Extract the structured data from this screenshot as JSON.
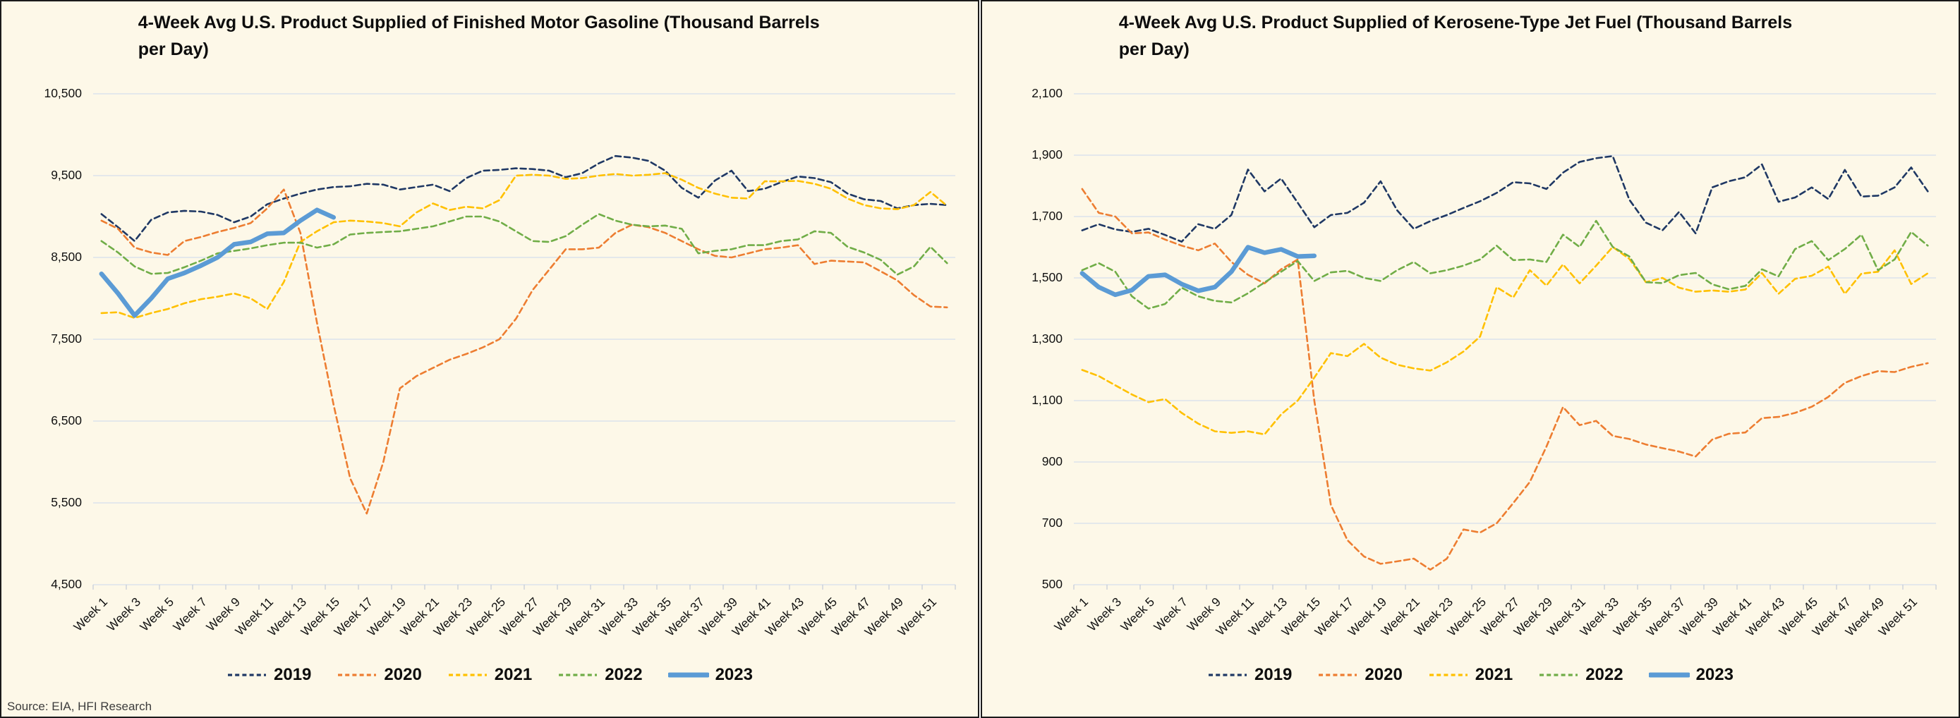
{
  "source_note": "Source: EIA, HFI Research",
  "chart_data": [
    {
      "type": "line",
      "title": "4-Week Avg U.S. Product Supplied of Finished Motor Gasoline  (Thousand Barrels per Day)",
      "xlabel": "",
      "ylabel": "",
      "ylim": [
        4500,
        10500
      ],
      "y_step": 1000,
      "y_tick_labels": [
        "10,500",
        "9,500",
        "8,500",
        "7,500",
        "6,500",
        "5,500",
        "4,500"
      ],
      "x_tick_labels": [
        "Week 1",
        "Week 3",
        "Week 5",
        "Week 7",
        "Week 9",
        "Week 11",
        "Week 13",
        "Week 15",
        "Week 17",
        "Week 19",
        "Week 21",
        "Week 23",
        "Week 25",
        "Week 27",
        "Week 29",
        "Week 31",
        "Week 33",
        "Week 35",
        "Week 37",
        "Week 39",
        "Week 41",
        "Week 43",
        "Week 45",
        "Week 47",
        "Week 49",
        "Week 51"
      ],
      "n_points": 52,
      "grid": true,
      "legend_position": "bottom",
      "series": [
        {
          "name": "2019",
          "color": "#1f3864",
          "dash": "dashed",
          "width": 2.6,
          "values": [
            9030,
            8870,
            8700,
            8960,
            9050,
            9070,
            9060,
            9020,
            8930,
            9000,
            9150,
            9220,
            9280,
            9330,
            9360,
            9370,
            9400,
            9390,
            9330,
            9360,
            9390,
            9310,
            9470,
            9560,
            9570,
            9590,
            9580,
            9560,
            9480,
            9530,
            9650,
            9740,
            9720,
            9680,
            9560,
            9350,
            9230,
            9440,
            9560,
            9310,
            9340,
            9420,
            9490,
            9470,
            9420,
            9280,
            9210,
            9190,
            9100,
            9140,
            9155,
            9140
          ]
        },
        {
          "name": "2020",
          "color": "#ed7d31",
          "dash": "dashed",
          "width": 2.6,
          "values": [
            8950,
            8850,
            8620,
            8560,
            8530,
            8700,
            8750,
            8810,
            8860,
            8920,
            9100,
            9330,
            8800,
            7700,
            6700,
            5800,
            5370,
            6000,
            6900,
            7050,
            7150,
            7250,
            7320,
            7400,
            7500,
            7750,
            8100,
            8350,
            8600,
            8600,
            8620,
            8800,
            8900,
            8870,
            8800,
            8700,
            8600,
            8520,
            8500,
            8550,
            8600,
            8620,
            8650,
            8420,
            8460,
            8450,
            8440,
            8330,
            8220,
            8040,
            7900,
            7890
          ]
        },
        {
          "name": "2021",
          "color": "#ffc000",
          "dash": "dashed",
          "width": 2.6,
          "values": [
            7820,
            7830,
            7760,
            7820,
            7870,
            7940,
            7990,
            8020,
            8060,
            8000,
            7870,
            8200,
            8690,
            8820,
            8930,
            8950,
            8940,
            8920,
            8880,
            9050,
            9160,
            9080,
            9120,
            9100,
            9200,
            9500,
            9510,
            9500,
            9460,
            9470,
            9500,
            9520,
            9500,
            9510,
            9530,
            9450,
            9350,
            9280,
            9230,
            9220,
            9430,
            9430,
            9435,
            9400,
            9340,
            9220,
            9140,
            9100,
            9090,
            9140,
            9300,
            9130
          ]
        },
        {
          "name": "2022",
          "color": "#70ad47",
          "dash": "dashed",
          "width": 2.6,
          "values": [
            8700,
            8560,
            8390,
            8300,
            8310,
            8380,
            8460,
            8550,
            8580,
            8610,
            8650,
            8680,
            8680,
            8620,
            8660,
            8780,
            8800,
            8810,
            8820,
            8850,
            8880,
            8940,
            9000,
            9000,
            8940,
            8820,
            8700,
            8690,
            8760,
            8900,
            9030,
            8950,
            8900,
            8880,
            8890,
            8850,
            8550,
            8580,
            8600,
            8650,
            8650,
            8700,
            8720,
            8820,
            8800,
            8630,
            8560,
            8470,
            8290,
            8390,
            8630,
            8430
          ]
        },
        {
          "name": "2023",
          "color": "#5b9bd5",
          "dash": "solid",
          "width": 6.5,
          "values": [
            8300,
            8060,
            7790,
            8000,
            8240,
            8310,
            8400,
            8500,
            8660,
            8690,
            8790,
            8800,
            8950,
            9080,
            8990
          ]
        }
      ]
    },
    {
      "type": "line",
      "title": "4-Week Avg U.S. Product Supplied of Kerosene-Type Jet Fuel  (Thousand Barrels per Day)",
      "xlabel": "",
      "ylabel": "",
      "ylim": [
        500,
        2100
      ],
      "y_step": 200,
      "y_tick_labels": [
        "2,100",
        "1,900",
        "1,700",
        "1,500",
        "1,300",
        "1,100",
        "900",
        "700",
        "500"
      ],
      "x_tick_labels": [
        "Week 1",
        "Week 3",
        "Week 5",
        "Week 7",
        "Week 9",
        "Week 11",
        "Week 13",
        "Week 15",
        "Week 17",
        "Week 19",
        "Week 21",
        "Week 23",
        "Week 25",
        "Week 27",
        "Week 29",
        "Week 31",
        "Week 33",
        "Week 35",
        "Week 37",
        "Week 39",
        "Week 41",
        "Week 43",
        "Week 45",
        "Week 47",
        "Week 49",
        "Week 51"
      ],
      "n_points": 52,
      "grid": true,
      "legend_position": "bottom",
      "series": [
        {
          "name": "2019",
          "color": "#1f3864",
          "dash": "dashed",
          "width": 2.6,
          "values": [
            1655,
            1675,
            1658,
            1650,
            1660,
            1640,
            1618,
            1675,
            1660,
            1705,
            1853,
            1782,
            1824,
            1745,
            1665,
            1705,
            1712,
            1745,
            1815,
            1720,
            1660,
            1685,
            1705,
            1728,
            1750,
            1777,
            1812,
            1808,
            1790,
            1843,
            1878,
            1890,
            1897,
            1755,
            1680,
            1655,
            1715,
            1645,
            1795,
            1815,
            1828,
            1870,
            1748,
            1762,
            1795,
            1757,
            1852,
            1765,
            1768,
            1795,
            1860,
            1782
          ]
        },
        {
          "name": "2020",
          "color": "#ed7d31",
          "dash": "dashed",
          "width": 2.6,
          "values": [
            1790,
            1712,
            1700,
            1645,
            1648,
            1625,
            1605,
            1590,
            1612,
            1552,
            1510,
            1482,
            1528,
            1560,
            1100,
            760,
            645,
            592,
            568,
            576,
            585,
            549,
            585,
            680,
            670,
            700,
            766,
            835,
            950,
            1079,
            1020,
            1034,
            985,
            975,
            957,
            945,
            934,
            918,
            973,
            992,
            996,
            1043,
            1047,
            1060,
            1080,
            1112,
            1158,
            1180,
            1196,
            1193,
            1210,
            1222
          ]
        },
        {
          "name": "2021",
          "color": "#ffc000",
          "dash": "dashed",
          "width": 2.6,
          "values": [
            1200,
            1180,
            1150,
            1120,
            1095,
            1105,
            1060,
            1025,
            1000,
            995,
            1000,
            990,
            1055,
            1100,
            1175,
            1255,
            1245,
            1285,
            1240,
            1217,
            1205,
            1198,
            1225,
            1260,
            1309,
            1470,
            1436,
            1525,
            1475,
            1544,
            1482,
            1540,
            1601,
            1562,
            1486,
            1500,
            1468,
            1455,
            1459,
            1455,
            1462,
            1516,
            1448,
            1497,
            1507,
            1537,
            1448,
            1514,
            1520,
            1590,
            1480,
            1515
          ]
        },
        {
          "name": "2022",
          "color": "#70ad47",
          "dash": "dashed",
          "width": 2.6,
          "values": [
            1525,
            1548,
            1520,
            1440,
            1400,
            1415,
            1468,
            1440,
            1425,
            1420,
            1450,
            1485,
            1520,
            1555,
            1490,
            1518,
            1523,
            1500,
            1490,
            1525,
            1552,
            1515,
            1525,
            1540,
            1560,
            1605,
            1558,
            1560,
            1552,
            1641,
            1601,
            1686,
            1601,
            1570,
            1486,
            1483,
            1509,
            1516,
            1479,
            1463,
            1474,
            1528,
            1505,
            1594,
            1620,
            1558,
            1594,
            1641,
            1525,
            1560,
            1650,
            1605
          ]
        },
        {
          "name": "2023",
          "color": "#5b9bd5",
          "dash": "solid",
          "width": 6.5,
          "values": [
            1515,
            1470,
            1445,
            1460,
            1505,
            1510,
            1480,
            1458,
            1470,
            1520,
            1600,
            1582,
            1593,
            1570,
            1572
          ]
        }
      ]
    }
  ],
  "style": {
    "panel_background": "#fdf8e8",
    "gridline_color": "#dbe2ec",
    "tick_color": "#c7cdd8",
    "text_color": "#111111"
  }
}
